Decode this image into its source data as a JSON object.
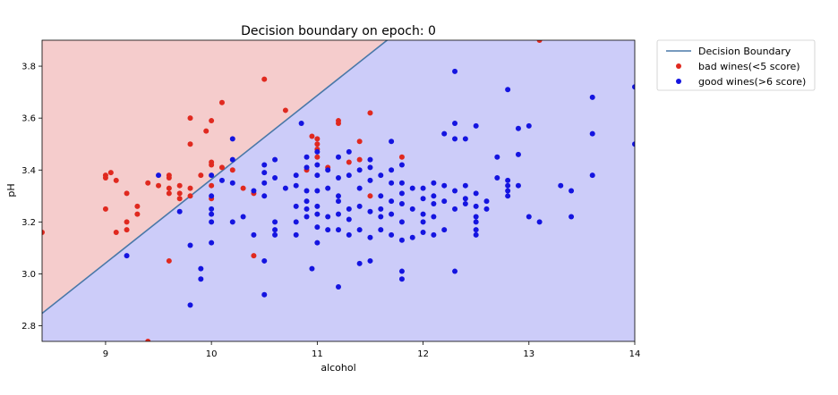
{
  "chart_data": {
    "type": "scatter",
    "title": "Decision boundary on epoch: 0",
    "xlabel": "alcohol",
    "ylabel": "pH",
    "xlim": [
      8.4,
      14.0
    ],
    "ylim": [
      2.74,
      3.9
    ],
    "x_ticks": [
      9,
      10,
      11,
      12,
      13,
      14
    ],
    "y_ticks": [
      2.8,
      3.0,
      3.2,
      3.4,
      3.6,
      3.8
    ],
    "grid": false,
    "legend_position": "outside-top-right",
    "regions": [
      {
        "name": "bad",
        "color": "#f5cccc"
      },
      {
        "name": "good",
        "color": "#ccccf9"
      }
    ],
    "decision_boundary": {
      "name": "Decision Boundary",
      "color": "#4a78a8",
      "points": [
        [
          8.4,
          2.848
        ],
        [
          11.66,
          3.9
        ]
      ]
    },
    "series": [
      {
        "name": "bad wines(<5 score)",
        "color": "#e0291f",
        "points": [
          [
            8.4,
            3.16
          ],
          [
            9.0,
            3.38
          ],
          [
            9.0,
            3.37
          ],
          [
            9.05,
            3.39
          ],
          [
            9.1,
            3.36
          ],
          [
            9.0,
            3.25
          ],
          [
            9.1,
            3.16
          ],
          [
            9.2,
            3.17
          ],
          [
            9.2,
            3.31
          ],
          [
            9.2,
            3.2
          ],
          [
            9.3,
            3.26
          ],
          [
            9.3,
            3.23
          ],
          [
            9.4,
            3.35
          ],
          [
            9.4,
            2.74
          ],
          [
            9.5,
            3.34
          ],
          [
            9.6,
            3.37
          ],
          [
            9.6,
            3.38
          ],
          [
            9.6,
            3.33
          ],
          [
            9.6,
            3.31
          ],
          [
            9.6,
            3.05
          ],
          [
            9.7,
            3.34
          ],
          [
            9.7,
            3.31
          ],
          [
            9.7,
            3.29
          ],
          [
            9.8,
            3.6
          ],
          [
            9.8,
            3.5
          ],
          [
            9.8,
            3.33
          ],
          [
            9.8,
            3.3
          ],
          [
            9.9,
            3.38
          ],
          [
            9.95,
            3.55
          ],
          [
            10.0,
            3.59
          ],
          [
            10.0,
            3.43
          ],
          [
            10.0,
            3.42
          ],
          [
            10.0,
            3.34
          ],
          [
            10.0,
            3.29
          ],
          [
            10.1,
            3.66
          ],
          [
            10.1,
            3.41
          ],
          [
            10.2,
            3.4
          ],
          [
            10.3,
            3.33
          ],
          [
            10.4,
            3.31
          ],
          [
            10.4,
            3.07
          ],
          [
            10.5,
            3.75
          ],
          [
            10.7,
            3.63
          ],
          [
            10.9,
            3.4
          ],
          [
            10.95,
            3.53
          ],
          [
            11.0,
            3.52
          ],
          [
            11.0,
            3.5
          ],
          [
            11.0,
            3.48
          ],
          [
            11.0,
            3.45
          ],
          [
            11.1,
            3.41
          ],
          [
            11.2,
            3.59
          ],
          [
            11.2,
            3.58
          ],
          [
            11.3,
            3.43
          ],
          [
            11.4,
            3.44
          ],
          [
            11.4,
            3.51
          ],
          [
            11.5,
            3.62
          ],
          [
            11.5,
            3.3
          ],
          [
            11.8,
            3.45
          ],
          [
            13.1,
            3.9
          ]
        ]
      },
      {
        "name": "good wines(>6 score)",
        "color": "#1414e0",
        "points": [
          [
            9.2,
            3.07
          ],
          [
            9.5,
            3.38
          ],
          [
            9.7,
            3.24
          ],
          [
            9.8,
            3.11
          ],
          [
            9.8,
            2.88
          ],
          [
            9.9,
            3.02
          ],
          [
            9.9,
            2.98
          ],
          [
            10.0,
            3.38
          ],
          [
            10.0,
            3.3
          ],
          [
            10.0,
            3.25
          ],
          [
            10.0,
            3.23
          ],
          [
            10.0,
            3.2
          ],
          [
            10.0,
            3.12
          ],
          [
            10.1,
            3.36
          ],
          [
            10.2,
            3.52
          ],
          [
            10.2,
            3.44
          ],
          [
            10.2,
            3.35
          ],
          [
            10.2,
            3.2
          ],
          [
            10.3,
            3.22
          ],
          [
            10.4,
            3.32
          ],
          [
            10.4,
            3.15
          ],
          [
            10.5,
            3.42
          ],
          [
            10.5,
            3.39
          ],
          [
            10.5,
            3.35
          ],
          [
            10.5,
            3.3
          ],
          [
            10.5,
            3.05
          ],
          [
            10.5,
            2.92
          ],
          [
            10.6,
            3.44
          ],
          [
            10.6,
            3.37
          ],
          [
            10.6,
            3.2
          ],
          [
            10.6,
            3.17
          ],
          [
            10.6,
            3.15
          ],
          [
            10.7,
            3.33
          ],
          [
            10.8,
            3.38
          ],
          [
            10.8,
            3.34
          ],
          [
            10.8,
            3.26
          ],
          [
            10.8,
            3.2
          ],
          [
            10.8,
            3.15
          ],
          [
            10.85,
            3.58
          ],
          [
            10.9,
            3.45
          ],
          [
            10.9,
            3.41
          ],
          [
            10.9,
            3.32
          ],
          [
            10.9,
            3.28
          ],
          [
            10.9,
            3.25
          ],
          [
            10.9,
            3.22
          ],
          [
            10.95,
            3.02
          ],
          [
            11.0,
            3.47
          ],
          [
            11.0,
            3.42
          ],
          [
            11.0,
            3.38
          ],
          [
            11.0,
            3.32
          ],
          [
            11.0,
            3.26
          ],
          [
            11.0,
            3.23
          ],
          [
            11.0,
            3.18
          ],
          [
            11.0,
            3.12
          ],
          [
            11.1,
            3.4
          ],
          [
            11.1,
            3.33
          ],
          [
            11.1,
            3.22
          ],
          [
            11.1,
            3.17
          ],
          [
            11.2,
            3.45
          ],
          [
            11.2,
            3.37
          ],
          [
            11.2,
            3.3
          ],
          [
            11.2,
            3.28
          ],
          [
            11.2,
            3.23
          ],
          [
            11.2,
            3.17
          ],
          [
            11.2,
            2.95
          ],
          [
            11.3,
            3.47
          ],
          [
            11.3,
            3.38
          ],
          [
            11.3,
            3.25
          ],
          [
            11.3,
            3.21
          ],
          [
            11.3,
            3.15
          ],
          [
            11.4,
            3.4
          ],
          [
            11.4,
            3.33
          ],
          [
            11.4,
            3.26
          ],
          [
            11.4,
            3.17
          ],
          [
            11.4,
            3.04
          ],
          [
            11.5,
            3.44
          ],
          [
            11.5,
            3.41
          ],
          [
            11.5,
            3.36
          ],
          [
            11.5,
            3.24
          ],
          [
            11.5,
            3.14
          ],
          [
            11.5,
            3.05
          ],
          [
            11.6,
            3.38
          ],
          [
            11.6,
            3.3
          ],
          [
            11.6,
            3.25
          ],
          [
            11.6,
            3.22
          ],
          [
            11.6,
            3.17
          ],
          [
            11.7,
            3.51
          ],
          [
            11.7,
            3.4
          ],
          [
            11.7,
            3.35
          ],
          [
            11.7,
            3.28
          ],
          [
            11.7,
            3.23
          ],
          [
            11.7,
            3.15
          ],
          [
            11.8,
            3.42
          ],
          [
            11.8,
            3.35
          ],
          [
            11.8,
            3.31
          ],
          [
            11.8,
            3.27
          ],
          [
            11.8,
            3.2
          ],
          [
            11.8,
            3.13
          ],
          [
            11.8,
            3.01
          ],
          [
            11.8,
            2.98
          ],
          [
            11.9,
            3.33
          ],
          [
            11.9,
            3.25
          ],
          [
            11.9,
            3.14
          ],
          [
            12.0,
            3.33
          ],
          [
            12.0,
            3.29
          ],
          [
            12.0,
            3.23
          ],
          [
            12.0,
            3.2
          ],
          [
            12.0,
            3.16
          ],
          [
            12.1,
            3.35
          ],
          [
            12.1,
            3.3
          ],
          [
            12.1,
            3.27
          ],
          [
            12.1,
            3.22
          ],
          [
            12.1,
            3.15
          ],
          [
            12.2,
            3.54
          ],
          [
            12.2,
            3.34
          ],
          [
            12.2,
            3.28
          ],
          [
            12.2,
            3.17
          ],
          [
            12.3,
            3.78
          ],
          [
            12.3,
            3.58
          ],
          [
            12.3,
            3.52
          ],
          [
            12.3,
            3.32
          ],
          [
            12.3,
            3.25
          ],
          [
            12.3,
            3.01
          ],
          [
            12.4,
            3.52
          ],
          [
            12.4,
            3.34
          ],
          [
            12.4,
            3.29
          ],
          [
            12.4,
            3.27
          ],
          [
            12.5,
            3.57
          ],
          [
            12.5,
            3.31
          ],
          [
            12.5,
            3.26
          ],
          [
            12.5,
            3.22
          ],
          [
            12.5,
            3.2
          ],
          [
            12.5,
            3.17
          ],
          [
            12.5,
            3.15
          ],
          [
            12.6,
            3.28
          ],
          [
            12.6,
            3.25
          ],
          [
            12.7,
            3.45
          ],
          [
            12.7,
            3.37
          ],
          [
            12.8,
            3.71
          ],
          [
            12.8,
            3.36
          ],
          [
            12.8,
            3.34
          ],
          [
            12.8,
            3.32
          ],
          [
            12.8,
            3.3
          ],
          [
            12.9,
            3.56
          ],
          [
            12.9,
            3.46
          ],
          [
            12.9,
            3.34
          ],
          [
            13.0,
            3.57
          ],
          [
            13.0,
            3.22
          ],
          [
            13.1,
            3.2
          ],
          [
            13.3,
            3.34
          ],
          [
            13.4,
            3.32
          ],
          [
            13.4,
            3.22
          ],
          [
            13.6,
            3.68
          ],
          [
            13.6,
            3.54
          ],
          [
            13.6,
            3.38
          ],
          [
            14.0,
            3.72
          ],
          [
            14.0,
            3.5
          ]
        ]
      }
    ]
  }
}
